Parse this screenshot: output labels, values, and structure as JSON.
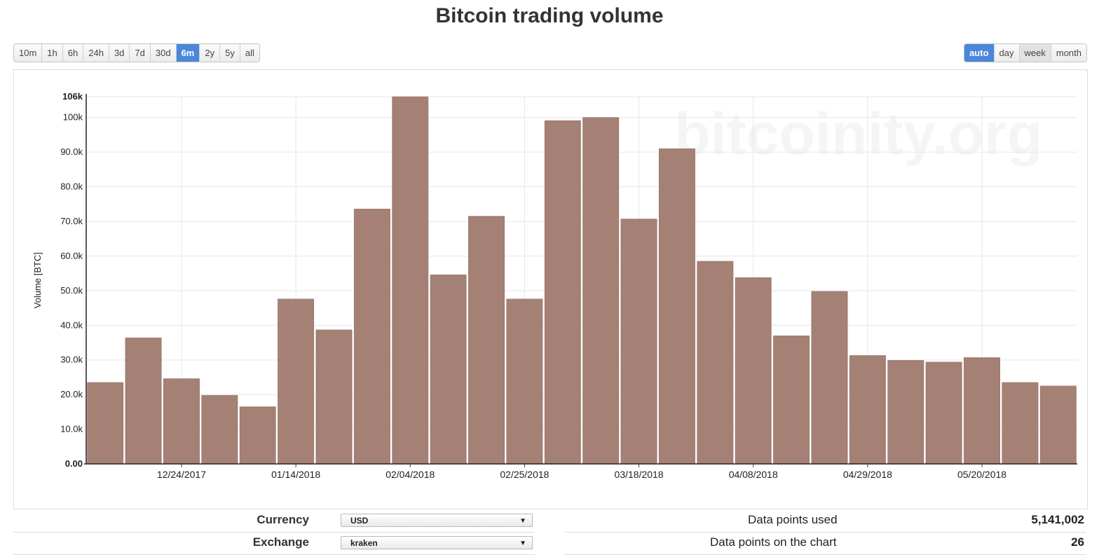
{
  "title": "Bitcoin trading volume",
  "range_buttons": [
    {
      "label": "10m",
      "active": false
    },
    {
      "label": "1h",
      "active": false
    },
    {
      "label": "6h",
      "active": false
    },
    {
      "label": "24h",
      "active": false
    },
    {
      "label": "3d",
      "active": false
    },
    {
      "label": "7d",
      "active": false
    },
    {
      "label": "30d",
      "active": false
    },
    {
      "label": "6m",
      "active": true
    },
    {
      "label": "2y",
      "active": false
    },
    {
      "label": "5y",
      "active": false
    },
    {
      "label": "all",
      "active": false
    }
  ],
  "period_buttons": [
    {
      "label": "auto",
      "active": true
    },
    {
      "label": "day",
      "active": false
    },
    {
      "label": "week",
      "active": false,
      "pressed": true
    },
    {
      "label": "month",
      "active": false
    }
  ],
  "colors": {
    "bar": "#a48075",
    "accent": "#4a87d8"
  },
  "chart_data": {
    "type": "bar",
    "title": "",
    "ylabel": "Volume [BTC]",
    "watermark": "bitcoinity.org",
    "ylim": [
      0,
      106000
    ],
    "yticks": [
      "0.00",
      "10.0k",
      "20.0k",
      "30.0k",
      "40.0k",
      "50.0k",
      "60.0k",
      "70.0k",
      "80.0k",
      "90.0k",
      "100k"
    ],
    "ymax_label": "106k",
    "x_tick_labels": [
      "12/24/2017",
      "01/14/2018",
      "02/04/2018",
      "02/25/2018",
      "03/18/2018",
      "04/08/2018",
      "04/29/2018",
      "05/20/2018"
    ],
    "x_tick_index": [
      2.5,
      5.5,
      8.5,
      11.5,
      14.5,
      17.5,
      20.5,
      23.5
    ],
    "values": [
      23500,
      36400,
      24600,
      19800,
      16500,
      47600,
      38700,
      73600,
      106000,
      54600,
      71500,
      47600,
      99100,
      100000,
      70700,
      91000,
      58500,
      53800,
      37000,
      49800,
      31300,
      29900,
      29400,
      30700,
      23500,
      22500
    ]
  },
  "controls": {
    "currency_label": "Currency",
    "currency_value": "USD",
    "exchange_label": "Exchange",
    "exchange_value": "kraken",
    "dropdown_arrow": "▼"
  },
  "stats": {
    "data_points_used_label": "Data points used",
    "data_points_used_value": "5,141,002",
    "data_points_chart_label": "Data points on the chart",
    "data_points_chart_value": "26"
  }
}
